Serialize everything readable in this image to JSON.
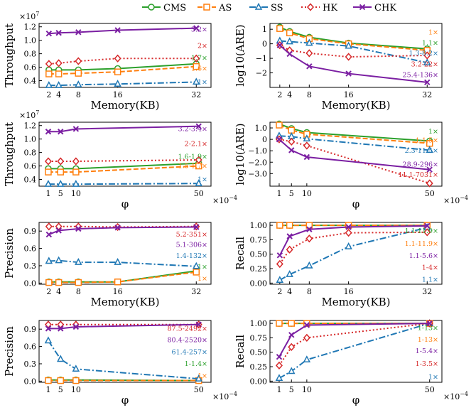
{
  "legend": [
    {
      "name": "CMS",
      "color": "#2ca02c",
      "dash": "solid",
      "marker": "circle"
    },
    {
      "name": "AS",
      "color": "#ff7f0e",
      "dash": "dashed",
      "marker": "square"
    },
    {
      "name": "SS",
      "color": "#1f77b4",
      "dash": "dashdot",
      "marker": "triangle"
    },
    {
      "name": "HK",
      "color": "#d62728",
      "dash": "dotted",
      "marker": "diamond"
    },
    {
      "name": "CHK",
      "color": "#7b1fa2",
      "dash": "solid",
      "marker": "x"
    }
  ],
  "chart_data": [
    {
      "type": "line",
      "xlabel": "Memory(KB)",
      "ylabel": "Throughput",
      "multiplier": "×10^7",
      "x": [
        2,
        4,
        8,
        16,
        32
      ],
      "xticks": [
        "2",
        "4",
        "8",
        "16",
        "32"
      ],
      "xlim": [
        0,
        35
      ],
      "ylim": [
        0.3,
        1.25
      ],
      "yticks": [
        0.4,
        0.6,
        0.8,
        1.0,
        1.2
      ],
      "yticklabels": [
        "0.4",
        "0.6",
        "0.8",
        "1.0",
        "1.2"
      ],
      "series": [
        {
          "name": "CMS",
          "values": [
            0.56,
            0.56,
            0.56,
            0.58,
            0.65
          ]
        },
        {
          "name": "AS",
          "values": [
            0.5,
            0.5,
            0.51,
            0.53,
            0.61
          ]
        },
        {
          "name": "SS",
          "values": [
            0.33,
            0.33,
            0.34,
            0.35,
            0.38
          ]
        },
        {
          "name": "HK",
          "values": [
            0.65,
            0.66,
            0.69,
            0.73,
            0.73
          ]
        },
        {
          "name": "CHK",
          "values": [
            1.1,
            1.11,
            1.12,
            1.15,
            1.18
          ]
        }
      ],
      "annotations": [
        {
          "text": "3.2×",
          "color": "#7b1fa2",
          "y": 1.16
        },
        {
          "text": "2×",
          "color": "#d62728",
          "y": 0.92
        },
        {
          "text": "1.7×",
          "color": "#2ca02c",
          "y": 0.74
        },
        {
          "text": "1.6×",
          "color": "#ff7f0e",
          "y": 0.58
        },
        {
          "text": "1×",
          "color": "#1f77b4",
          "y": 0.38
        }
      ]
    },
    {
      "type": "line",
      "xlabel": "Memory(KB)",
      "ylabel": "log10(ARE)",
      "x": [
        2,
        4,
        8,
        16,
        32
      ],
      "xticks": [
        "2",
        "4",
        "8",
        "16",
        "32"
      ],
      "xlim": [
        0,
        35
      ],
      "ylim": [
        -3,
        1.4
      ],
      "yticks": [
        -2,
        -1,
        0,
        1
      ],
      "yticklabels": [
        "−2",
        "−1",
        "0",
        "1"
      ],
      "series": [
        {
          "name": "CMS",
          "values": [
            1.15,
            0.85,
            0.45,
            0.05,
            -0.35
          ]
        },
        {
          "name": "AS",
          "values": [
            1.05,
            0.75,
            0.35,
            0.0,
            -0.45
          ]
        },
        {
          "name": "SS",
          "values": [
            0.2,
            0.15,
            0.05,
            -0.15,
            -1.3
          ]
        },
        {
          "name": "HK",
          "values": [
            -0.1,
            -0.45,
            -0.65,
            -0.9,
            -0.8
          ]
        },
        {
          "name": "CHK",
          "values": [
            -0.1,
            -0.7,
            -1.55,
            -2.05,
            -2.65
          ]
        }
      ],
      "annotations": [
        {
          "text": "1×",
          "color": "#ff7f0e",
          "y": 0.8
        },
        {
          "text": "1.1×",
          "color": "#2ca02c",
          "y": 0.05
        },
        {
          "text": "1.3-8.2×",
          "color": "#1f77b4",
          "y": -0.65
        },
        {
          "text": "3.2-22×",
          "color": "#d62728",
          "y": -1.4
        },
        {
          "text": "25.4-136×",
          "color": "#7b1fa2",
          "y": -2.15
        }
      ]
    },
    {
      "type": "line",
      "xlabel": "φ",
      "ylabel": "Throughput",
      "multiplier": "×10^7",
      "xmultiplier": "×10^-4",
      "x": [
        1,
        5,
        10,
        50
      ],
      "xticks": [
        "1",
        "5",
        "10",
        "50"
      ],
      "xlim": [
        -2,
        54
      ],
      "ylim": [
        0.3,
        1.25
      ],
      "yticks": [
        0.4,
        0.6,
        0.8,
        1.0,
        1.2
      ],
      "yticklabels": [
        "0.4",
        "0.6",
        "0.8",
        "1.0",
        "1.2"
      ],
      "series": [
        {
          "name": "CMS",
          "values": [
            0.56,
            0.56,
            0.56,
            0.64
          ]
        },
        {
          "name": "AS",
          "values": [
            0.51,
            0.51,
            0.51,
            0.6
          ]
        },
        {
          "name": "SS",
          "values": [
            0.33,
            0.33,
            0.33,
            0.34
          ]
        },
        {
          "name": "HK",
          "values": [
            0.67,
            0.67,
            0.67,
            0.69
          ]
        },
        {
          "name": "CHK",
          "values": [
            1.11,
            1.11,
            1.15,
            1.19
          ]
        }
      ],
      "annotations": [
        {
          "text": "3.2-3.4×",
          "color": "#7b1fa2",
          "y": 1.15
        },
        {
          "text": "2-2.1×",
          "color": "#d62728",
          "y": 0.93
        },
        {
          "text": "1.6-1.9×",
          "color": "#2ca02c",
          "y": 0.74
        },
        {
          "text": "1.5-1.7×",
          "color": "#ff7f0e",
          "y": 0.6
        },
        {
          "text": "1×",
          "color": "#1f77b4",
          "y": 0.4
        }
      ]
    },
    {
      "type": "line",
      "xlabel": "φ",
      "ylabel": "log10(ARE)",
      "xmultiplier": "×10^-4",
      "x": [
        1,
        5,
        10,
        50
      ],
      "xticks": [
        "1",
        "5",
        "10",
        "50"
      ],
      "xlim": [
        -2,
        54
      ],
      "ylim": [
        -4.1,
        1.5
      ],
      "yticks": [
        -3,
        -2,
        -1,
        0,
        1
      ],
      "yticklabels": [
        "−3.0",
        "−2.0",
        "−1.0",
        "0",
        "1.0"
      ],
      "series": [
        {
          "name": "CMS",
          "values": [
            1.35,
            0.95,
            0.6,
            -0.15
          ]
        },
        {
          "name": "AS",
          "values": [
            1.25,
            0.8,
            0.45,
            -0.35
          ]
        },
        {
          "name": "SS",
          "values": [
            0.3,
            0.25,
            0.05,
            -0.95
          ]
        },
        {
          "name": "HK",
          "values": [
            0.0,
            -0.2,
            -0.55,
            -3.85
          ]
        },
        {
          "name": "CHK",
          "values": [
            0.0,
            -0.95,
            -1.55,
            -2.65
          ]
        }
      ],
      "annotations": [
        {
          "text": "1×",
          "color": "#2ca02c",
          "y": 0.7
        },
        {
          "text": "1-1.5×",
          "color": "#ff7f0e",
          "y": -0.1
        },
        {
          "text": "2.3-11.5×",
          "color": "#1f77b4",
          "y": -1.0
        },
        {
          "text": "28.9-296×",
          "color": "#7b1fa2",
          "y": -2.2
        },
        {
          "text": "11.1-7031×",
          "color": "#d62728",
          "y": -3.1
        }
      ]
    },
    {
      "type": "line",
      "xlabel": "Memory(KB)",
      "ylabel": "Precision",
      "x": [
        2,
        4,
        8,
        16,
        32
      ],
      "xticks": [
        "2",
        "4",
        "8",
        "16",
        "32"
      ],
      "xlim": [
        0,
        35
      ],
      "ylim": [
        -0.02,
        1.05
      ],
      "yticks": [
        0,
        0.3,
        0.6,
        0.9
      ],
      "yticklabels": [
        "0.0",
        "0.3",
        "0.6",
        "0.9"
      ],
      "series": [
        {
          "name": "CMS",
          "values": [
            0.02,
            0.02,
            0.02,
            0.02,
            0.21
          ]
        },
        {
          "name": "AS",
          "values": [
            0.01,
            0.01,
            0.01,
            0.02,
            0.19
          ]
        },
        {
          "name": "SS",
          "values": [
            0.38,
            0.39,
            0.36,
            0.36,
            0.29
          ]
        },
        {
          "name": "HK",
          "values": [
            0.98,
            0.98,
            0.98,
            0.97,
            0.98
          ]
        },
        {
          "name": "CHK",
          "values": [
            0.84,
            0.91,
            0.94,
            0.96,
            0.97
          ]
        }
      ],
      "annotations": [
        {
          "text": "5.2-351×",
          "color": "#d62728",
          "y": 0.84
        },
        {
          "text": "5.1-306×",
          "color": "#7b1fa2",
          "y": 0.66
        },
        {
          "text": "1.4-132×",
          "color": "#1f77b4",
          "y": 0.47
        },
        {
          "text": "1×",
          "color": "#2ca02c",
          "y": 0.28
        },
        {
          "text": "1×",
          "color": "#ff7f0e",
          "y": 0.08
        }
      ]
    },
    {
      "type": "line",
      "xlabel": "Memory(KB)",
      "ylabel": "Recall",
      "x": [
        2,
        4,
        8,
        16,
        32
      ],
      "xticks": [
        "2",
        "4",
        "8",
        "16",
        "32"
      ],
      "xlim": [
        0,
        35
      ],
      "ylim": [
        -0.02,
        1.05
      ],
      "yticks": [
        0,
        0.25,
        0.5,
        0.75,
        1.0
      ],
      "yticklabels": [
        "0.00",
        "0.25",
        "0.50",
        "0.75",
        "1.00"
      ],
      "series": [
        {
          "name": "CMS",
          "values": [
            1.0,
            1.0,
            1.0,
            1.0,
            1.0
          ]
        },
        {
          "name": "AS",
          "values": [
            1.0,
            1.0,
            1.0,
            1.0,
            1.0
          ]
        },
        {
          "name": "SS",
          "values": [
            0.05,
            0.15,
            0.3,
            0.63,
            0.96
          ]
        },
        {
          "name": "HK",
          "values": [
            0.33,
            0.58,
            0.77,
            0.87,
            0.88
          ]
        },
        {
          "name": "CHK",
          "values": [
            0.48,
            0.81,
            0.93,
            0.97,
            0.99
          ]
        }
      ],
      "annotations": [
        {
          "text": "1.1-11.9×",
          "color": "#2ca02c",
          "y": 0.9
        },
        {
          "text": "1.1-11.9×",
          "color": "#ff7f0e",
          "y": 0.68
        },
        {
          "text": "1.1-5.6×",
          "color": "#7b1fa2",
          "y": 0.47
        },
        {
          "text": "1-4×",
          "color": "#d62728",
          "y": 0.27
        },
        {
          "text": "1.1×",
          "color": "#1f77b4",
          "y": 0.06
        }
      ]
    },
    {
      "type": "line",
      "xlabel": "φ",
      "ylabel": "Precision",
      "xmultiplier": "×10^-4",
      "x": [
        1,
        5,
        10,
        50
      ],
      "xticks": [
        "1",
        "5",
        "10",
        "50"
      ],
      "xlim": [
        -2,
        54
      ],
      "ylim": [
        -0.02,
        1.05
      ],
      "yticks": [
        0,
        0.3,
        0.6,
        0.9
      ],
      "yticklabels": [
        "0.0",
        "0.3",
        "0.6",
        "0.9"
      ],
      "series": [
        {
          "name": "CMS",
          "values": [
            0.02,
            0.02,
            0.02,
            0.01
          ]
        },
        {
          "name": "AS",
          "values": [
            0.01,
            0.01,
            0.01,
            0.01
          ]
        },
        {
          "name": "SS",
          "values": [
            0.7,
            0.38,
            0.21,
            0.04
          ]
        },
        {
          "name": "HK",
          "values": [
            0.98,
            0.98,
            0.98,
            0.98
          ]
        },
        {
          "name": "CHK",
          "values": [
            0.91,
            0.91,
            0.94,
            0.98
          ]
        }
      ],
      "annotations": [
        {
          "text": "87.5-2492×",
          "color": "#d62728",
          "y": 0.91
        },
        {
          "text": "80.4-2520×",
          "color": "#7b1fa2",
          "y": 0.71
        },
        {
          "text": "61.4-257×",
          "color": "#1f77b4",
          "y": 0.5
        },
        {
          "text": "1-1.4×",
          "color": "#2ca02c",
          "y": 0.3
        },
        {
          "text": "1×",
          "color": "#ff7f0e",
          "y": 0.09
        }
      ]
    },
    {
      "type": "line",
      "xlabel": "φ",
      "ylabel": "Recall",
      "xmultiplier": "×10^-4",
      "x": [
        1,
        5,
        10,
        50
      ],
      "xticks": [
        "1",
        "5",
        "10",
        "50"
      ],
      "xlim": [
        -2,
        54
      ],
      "ylim": [
        -0.02,
        1.05
      ],
      "yticks": [
        0,
        0.25,
        0.5,
        0.75,
        1.0
      ],
      "yticklabels": [
        "0.00",
        "0.25",
        "0.50",
        "0.75",
        "1.00"
      ],
      "series": [
        {
          "name": "CMS",
          "values": [
            1.0,
            1.0,
            1.0,
            1.0
          ]
        },
        {
          "name": "AS",
          "values": [
            1.0,
            1.0,
            1.0,
            1.0
          ]
        },
        {
          "name": "SS",
          "values": [
            0.05,
            0.17,
            0.37,
            1.0
          ]
        },
        {
          "name": "HK",
          "values": [
            0.27,
            0.59,
            0.75,
            1.0
          ]
        },
        {
          "name": "CHK",
          "values": [
            0.42,
            0.8,
            0.97,
            1.0
          ]
        }
      ],
      "annotations": [
        {
          "text": "1-13×",
          "color": "#2ca02c",
          "y": 0.92
        },
        {
          "text": "1-13×",
          "color": "#ff7f0e",
          "y": 0.72
        },
        {
          "text": "1-5.4×",
          "color": "#7b1fa2",
          "y": 0.52
        },
        {
          "text": "1-3.5×",
          "color": "#d62728",
          "y": 0.3
        },
        {
          "text": "1×",
          "color": "#1f77b4",
          "y": 0.07
        }
      ]
    }
  ]
}
